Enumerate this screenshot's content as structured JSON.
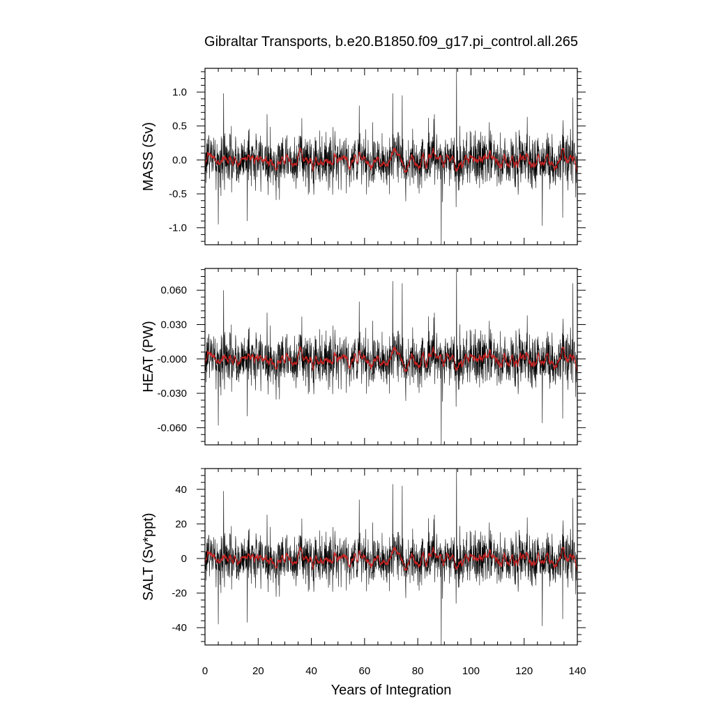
{
  "colors": {
    "raw": "#000000",
    "smooth": "#cc2222",
    "frame": "#000000",
    "background": "#ffffff"
  },
  "chart_data": [
    {
      "type": "line",
      "title": "Gibraltar Transports, b.e20.B1850.f09_g17.pi_control.all.265",
      "ylabel": "MASS (Sv)",
      "xlabel": "",
      "xlim": [
        0,
        140
      ],
      "ylim": [
        -1.25,
        1.35
      ],
      "yticks": [
        1.0,
        0.5,
        0.0,
        -0.5,
        -1.0
      ],
      "ytick_labels": [
        "1.0",
        "0.5",
        "0.0",
        "-0.5",
        "-1.0"
      ],
      "xticks": [
        0,
        20,
        40,
        60,
        80,
        100,
        120,
        140
      ],
      "xtick_labels": [],
      "grid": false,
      "series": [
        {
          "style": "monthly",
          "color": "#000000",
          "noise_std": 0.2,
          "seed": 11
        },
        {
          "style": "running-mean",
          "color": "#cc2222"
        }
      ],
      "spikes": [
        {
          "x": 94.6,
          "y": 1.35
        },
        {
          "x": 88.8,
          "y": -1.25
        },
        {
          "x": 70.6,
          "y": 0.98
        },
        {
          "x": 7.0,
          "y": 0.98
        },
        {
          "x": 74.2,
          "y": 0.95
        },
        {
          "x": 138.3,
          "y": 0.92
        },
        {
          "x": 5.0,
          "y": -0.95
        },
        {
          "x": 126.8,
          "y": -0.97
        },
        {
          "x": 15.9,
          "y": -0.9
        },
        {
          "x": 58.0,
          "y": 0.8
        },
        {
          "x": 134.5,
          "y": -0.85
        }
      ]
    },
    {
      "type": "line",
      "title": "",
      "ylabel": "HEAT (PW)",
      "xlabel": "",
      "xlim": [
        0,
        140
      ],
      "ylim": [
        -0.075,
        0.079
      ],
      "yticks": [
        0.06,
        0.03,
        0.0,
        -0.03,
        -0.06
      ],
      "ytick_labels": [
        "0.060",
        "0.030",
        "-0.000",
        "-0.030",
        "-0.060"
      ],
      "xticks": [
        0,
        20,
        40,
        60,
        80,
        100,
        120,
        140
      ],
      "xtick_labels": [],
      "grid": false,
      "series": [
        {
          "style": "monthly",
          "color": "#000000",
          "noise_std": 0.012,
          "seed": 11
        },
        {
          "style": "running-mean",
          "color": "#cc2222"
        }
      ],
      "spikes": [
        {
          "x": 94.6,
          "y": 0.079
        },
        {
          "x": 88.8,
          "y": -0.075
        },
        {
          "x": 70.6,
          "y": 0.068
        },
        {
          "x": 7.0,
          "y": 0.06
        },
        {
          "x": 74.2,
          "y": 0.066
        },
        {
          "x": 138.3,
          "y": 0.066
        },
        {
          "x": 5.0,
          "y": -0.058
        },
        {
          "x": 126.8,
          "y": -0.056
        },
        {
          "x": 15.9,
          "y": -0.05
        },
        {
          "x": 58.0,
          "y": 0.05
        },
        {
          "x": 134.5,
          "y": -0.052
        }
      ]
    },
    {
      "type": "line",
      "title": "",
      "ylabel": "SALT (Sv*ppt)",
      "xlabel": "Years of Integration",
      "xlim": [
        0,
        140
      ],
      "ylim": [
        -50,
        52
      ],
      "yticks": [
        40,
        20,
        0,
        -20,
        -40
      ],
      "ytick_labels": [
        "40",
        "20",
        "0",
        "-20",
        "-40"
      ],
      "xticks": [
        0,
        20,
        40,
        60,
        80,
        100,
        120,
        140
      ],
      "xtick_labels": [
        "0",
        "20",
        "40",
        "60",
        "80",
        "100",
        "120",
        "140"
      ],
      "grid": false,
      "series": [
        {
          "style": "monthly",
          "color": "#000000",
          "noise_std": 7.5,
          "seed": 11
        },
        {
          "style": "running-mean",
          "color": "#cc2222"
        }
      ],
      "spikes": [
        {
          "x": 94.6,
          "y": 52
        },
        {
          "x": 88.8,
          "y": -50
        },
        {
          "x": 70.6,
          "y": 43
        },
        {
          "x": 7.0,
          "y": 39
        },
        {
          "x": 74.2,
          "y": 42
        },
        {
          "x": 138.3,
          "y": 35
        },
        {
          "x": 5.0,
          "y": -38
        },
        {
          "x": 126.8,
          "y": -39
        },
        {
          "x": 15.9,
          "y": -37
        },
        {
          "x": 58.0,
          "y": 34
        },
        {
          "x": 134.5,
          "y": -35
        }
      ]
    }
  ]
}
